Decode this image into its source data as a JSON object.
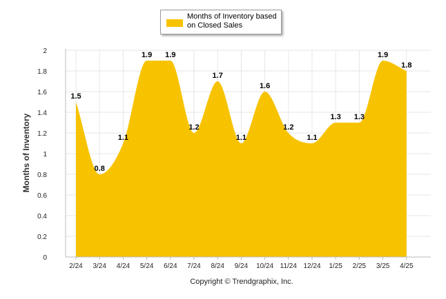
{
  "colors": {
    "area": "#F7C300",
    "grid": "#E6E6E6",
    "axis": "#BBBBBB",
    "text": "#000000"
  },
  "legend": {
    "label": "Months of Inventory based on Closed Sales",
    "placement": "top-center"
  },
  "copyright": "Copyright © Trendgraphix, Inc.",
  "chart_data": {
    "type": "area",
    "title": "",
    "ylabel": "Months of Inventory",
    "xlabel": "",
    "ylim": [
      0,
      2
    ],
    "yticks": [
      "0",
      "0.2",
      "0.4",
      "0.6",
      "0.8",
      "1",
      "1.2",
      "1.4",
      "1.6",
      "1.8",
      "2"
    ],
    "grid": true,
    "categories": [
      "2/24",
      "3/24",
      "4/24",
      "5/24",
      "6/24",
      "7/24",
      "8/24",
      "9/24",
      "10/24",
      "11/24",
      "12/24",
      "1/25",
      "2/25",
      "3/25",
      "4/25"
    ],
    "series": [
      {
        "name": "Months of Inventory based on Closed Sales",
        "values": [
          1.5,
          0.8,
          1.1,
          1.9,
          1.9,
          1.2,
          1.7,
          1.1,
          1.6,
          1.2,
          1.1,
          1.3,
          1.3,
          1.9,
          1.8
        ],
        "labels": [
          "1.5",
          "0.8",
          "1.1",
          "1.9",
          "1.9",
          "1.2",
          "1.7",
          "1.1",
          "1.6",
          "1.2",
          "1.1",
          "1.3",
          "1.3",
          "1.9",
          "1.8"
        ]
      }
    ]
  }
}
